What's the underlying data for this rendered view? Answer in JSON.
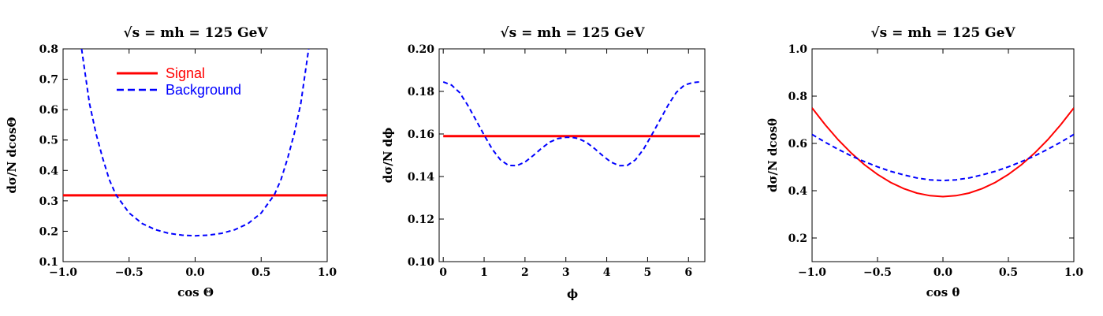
{
  "chart_data": [
    {
      "type": "line",
      "title": "√s = mh = 125 GeV",
      "xlabel": "cos Θ",
      "ylabel": "dσ/N dcosΘ",
      "xlim": [
        -1.0,
        1.0
      ],
      "ylim": [
        0.1,
        0.8
      ],
      "xticks": [
        "−1.0",
        "−0.5",
        "0.0",
        "0.5",
        "1.0"
      ],
      "xtick_values": [
        -1.0,
        -0.5,
        0.0,
        0.5,
        1.0
      ],
      "yticks": [
        "0.1",
        "0.2",
        "0.3",
        "0.4",
        "0.5",
        "0.6",
        "0.7",
        "0.8"
      ],
      "ytick_values": [
        0.1,
        0.2,
        0.3,
        0.4,
        0.5,
        0.6,
        0.7,
        0.8
      ],
      "legend": {
        "placement": "top-left"
      },
      "series": [
        {
          "name": "Signal",
          "color": "#ff0000",
          "style": "solid",
          "x": [
            -1.0,
            -0.5,
            0.0,
            0.5,
            1.0
          ],
          "y": [
            0.318,
            0.318,
            0.318,
            0.318,
            0.318
          ]
        },
        {
          "name": "Background",
          "color": "#0000ff",
          "style": "dashed",
          "x": [
            -0.86,
            -0.8,
            -0.75,
            -0.7,
            -0.65,
            -0.6,
            -0.5,
            -0.4,
            -0.3,
            -0.2,
            -0.1,
            0.0,
            0.1,
            0.2,
            0.3,
            0.4,
            0.5,
            0.6,
            0.65,
            0.7,
            0.75,
            0.8,
            0.86
          ],
          "y": [
            0.8,
            0.62,
            0.52,
            0.44,
            0.37,
            0.32,
            0.26,
            0.225,
            0.205,
            0.193,
            0.187,
            0.185,
            0.187,
            0.193,
            0.205,
            0.225,
            0.26,
            0.32,
            0.37,
            0.44,
            0.52,
            0.62,
            0.8
          ]
        }
      ]
    },
    {
      "type": "line",
      "title": "√s = mh = 125 GeV",
      "xlabel": "ϕ",
      "ylabel": "dσ/N dϕ",
      "xlim": [
        -0.1,
        6.4
      ],
      "ylim": [
        0.1,
        0.2
      ],
      "xticks": [
        "0",
        "1",
        "2",
        "3",
        "4",
        "5",
        "6"
      ],
      "xtick_values": [
        0,
        1,
        2,
        3,
        4,
        5,
        6
      ],
      "yticks": [
        "0.10",
        "0.12",
        "0.14",
        "0.16",
        "0.18",
        "0.20"
      ],
      "ytick_values": [
        0.1,
        0.12,
        0.14,
        0.16,
        0.18,
        0.2
      ],
      "series": [
        {
          "name": "Signal",
          "color": "#ff0000",
          "style": "solid",
          "x": [
            0.0,
            6.283
          ],
          "y": [
            0.159,
            0.159
          ]
        },
        {
          "name": "Background",
          "color": "#0000ff",
          "style": "dashed",
          "x": [
            0.0,
            0.2,
            0.4,
            0.6,
            0.8,
            1.0,
            1.2,
            1.4,
            1.6,
            1.8,
            2.0,
            2.2,
            2.4,
            2.6,
            2.8,
            3.0,
            3.14,
            3.3,
            3.5,
            3.7,
            3.9,
            4.1,
            4.3,
            4.5,
            4.7,
            4.9,
            5.1,
            5.3,
            5.5,
            5.7,
            5.9,
            6.1,
            6.283
          ],
          "y": [
            0.1845,
            0.183,
            0.1795,
            0.1735,
            0.1665,
            0.1595,
            0.1528,
            0.1478,
            0.1452,
            0.1451,
            0.1468,
            0.1498,
            0.1532,
            0.1561,
            0.1578,
            0.1584,
            0.1584,
            0.1579,
            0.1561,
            0.1532,
            0.1498,
            0.1468,
            0.1451,
            0.1452,
            0.1478,
            0.1528,
            0.1595,
            0.1665,
            0.1735,
            0.1795,
            0.183,
            0.1841,
            0.1845
          ]
        }
      ]
    },
    {
      "type": "line",
      "title": "√s = mh = 125 GeV",
      "xlabel": "cos θ",
      "ylabel": "dσ/N dcosθ",
      "xlim": [
        -1.0,
        1.0
      ],
      "ylim": [
        0.1,
        1.0
      ],
      "xticks": [
        "−1.0",
        "−0.5",
        "0.0",
        "0.5",
        "1.0"
      ],
      "xtick_values": [
        -1.0,
        -0.5,
        0.0,
        0.5,
        1.0
      ],
      "yticks": [
        "0.2",
        "0.4",
        "0.6",
        "0.8",
        "1.0"
      ],
      "ytick_values": [
        0.2,
        0.4,
        0.6,
        0.8,
        1.0
      ],
      "series": [
        {
          "name": "Signal",
          "color": "#ff0000",
          "style": "solid",
          "x": [
            -1.0,
            -0.9,
            -0.8,
            -0.7,
            -0.6,
            -0.5,
            -0.4,
            -0.3,
            -0.2,
            -0.1,
            0.0,
            0.1,
            0.2,
            0.3,
            0.4,
            0.5,
            0.6,
            0.7,
            0.8,
            0.9,
            1.0
          ],
          "y": [
            0.75,
            0.679,
            0.615,
            0.559,
            0.51,
            0.469,
            0.435,
            0.409,
            0.39,
            0.379,
            0.375,
            0.379,
            0.39,
            0.409,
            0.435,
            0.469,
            0.51,
            0.559,
            0.615,
            0.679,
            0.75
          ]
        },
        {
          "name": "Background",
          "color": "#0000ff",
          "style": "dashed",
          "x": [
            -1.0,
            -0.9,
            -0.8,
            -0.7,
            -0.6,
            -0.5,
            -0.4,
            -0.3,
            -0.2,
            -0.1,
            0.0,
            0.1,
            0.2,
            0.3,
            0.4,
            0.5,
            0.6,
            0.7,
            0.8,
            0.9,
            1.0
          ],
          "y": [
            0.638,
            0.605,
            0.575,
            0.547,
            0.523,
            0.501,
            0.482,
            0.467,
            0.454,
            0.446,
            0.443,
            0.446,
            0.454,
            0.467,
            0.482,
            0.501,
            0.523,
            0.547,
            0.575,
            0.605,
            0.638
          ]
        }
      ]
    }
  ]
}
